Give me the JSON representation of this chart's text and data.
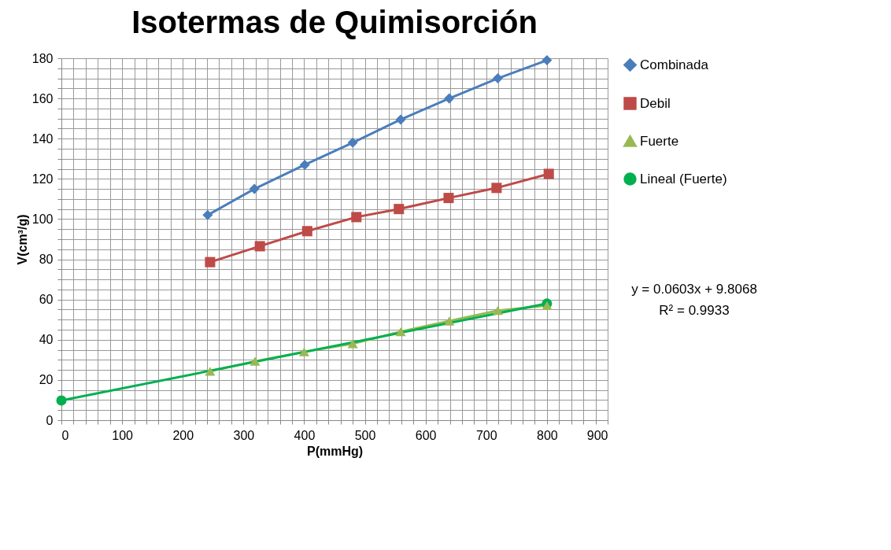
{
  "chart_data": {
    "type": "line",
    "title": "Isotermas de Quimisorción",
    "xlabel": "P(mmHg)",
    "ylabel": "V(cm³/g)",
    "xlim": [
      0,
      900
    ],
    "ylim": [
      0,
      180
    ],
    "xticks": [
      0,
      {
        "value": 20,
        "label": null
      },
      {
        "value": 40,
        "label": null
      },
      {
        "value": 60,
        "label": null
      },
      {
        "value": 80,
        "label": null
      },
      100,
      {
        "value": 120,
        "label": null
      },
      {
        "value": 140,
        "label": null
      },
      {
        "value": 160,
        "label": null
      },
      {
        "value": 180,
        "label": null
      },
      200,
      {
        "value": 220,
        "label": null
      },
      {
        "value": 240,
        "label": null
      },
      {
        "value": 260,
        "label": null
      },
      {
        "value": 280,
        "label": null
      },
      300,
      {
        "value": 320,
        "label": null
      },
      {
        "value": 340,
        "label": null
      },
      {
        "value": 360,
        "label": null
      },
      {
        "value": 380,
        "label": null
      },
      400,
      {
        "value": 420,
        "label": null
      },
      {
        "value": 440,
        "label": null
      },
      {
        "value": 460,
        "label": null
      },
      {
        "value": 480,
        "label": null
      },
      500,
      {
        "value": 520,
        "label": null
      },
      {
        "value": 540,
        "label": null
      },
      {
        "value": 560,
        "label": null
      },
      {
        "value": 580,
        "label": null
      },
      600,
      {
        "value": 620,
        "label": null
      },
      {
        "value": 640,
        "label": null
      },
      {
        "value": 660,
        "label": null
      },
      {
        "value": 680,
        "label": null
      },
      700,
      {
        "value": 720,
        "label": null
      },
      {
        "value": 740,
        "label": null
      },
      {
        "value": 760,
        "label": null
      },
      {
        "value": 780,
        "label": null
      },
      800,
      {
        "value": 820,
        "label": null
      },
      {
        "value": 840,
        "label": null
      },
      {
        "value": 860,
        "label": null
      },
      {
        "value": 880,
        "label": null
      },
      900
    ],
    "yticks": [
      0,
      {
        "value": 5,
        "label": null
      },
      {
        "value": 10,
        "label": null
      },
      {
        "value": 15,
        "label": null
      },
      20,
      {
        "value": 25,
        "label": null
      },
      {
        "value": 30,
        "label": null
      },
      {
        "value": 35,
        "label": null
      },
      40,
      {
        "value": 45,
        "label": null
      },
      {
        "value": 50,
        "label": null
      },
      {
        "value": 55,
        "label": null
      },
      60,
      {
        "value": 65,
        "label": null
      },
      {
        "value": 70,
        "label": null
      },
      {
        "value": 75,
        "label": null
      },
      80,
      {
        "value": 85,
        "label": null
      },
      {
        "value": 90,
        "label": null
      },
      {
        "value": 95,
        "label": null
      },
      100,
      {
        "value": 105,
        "label": null
      },
      {
        "value": 110,
        "label": null
      },
      {
        "value": 115,
        "label": null
      },
      120,
      {
        "value": 125,
        "label": null
      },
      {
        "value": 130,
        "label": null
      },
      {
        "value": 135,
        "label": null
      },
      140,
      {
        "value": 145,
        "label": null
      },
      {
        "value": 150,
        "label": null
      },
      {
        "value": 155,
        "label": null
      },
      160,
      {
        "value": 165,
        "label": null
      },
      {
        "value": 170,
        "label": null
      },
      {
        "value": 175,
        "label": null
      },
      180
    ],
    "grid": true,
    "legend": "right",
    "line_style": "solid",
    "series": [
      {
        "name": "Combinada",
        "color": "#4a7ebb",
        "marker": "diamond",
        "x": [
          241,
          318,
          401,
          480,
          559,
          639,
          719,
          800
        ],
        "values": [
          102,
          115,
          127,
          138,
          149.5,
          160,
          170,
          179
        ]
      },
      {
        "name": "Debil",
        "color": "#be4b48",
        "marker": "square",
        "x": [
          245,
          327,
          405,
          486,
          556,
          638,
          717,
          803
        ],
        "values": [
          78.6,
          86.5,
          94,
          101,
          105,
          110.5,
          115.5,
          122.5
        ]
      },
      {
        "name": "Fuerte",
        "color": "#98b954",
        "marker": "triangle",
        "x": [
          245,
          319,
          400,
          480,
          559,
          639,
          719,
          800
        ],
        "values": [
          24.3,
          29.3,
          34,
          38,
          44,
          49.3,
          54.5,
          57
        ]
      },
      {
        "name": "Lineal (Fuerte)",
        "color": "#00b050",
        "marker": "circle",
        "type": "line",
        "x": [
          0,
          800
        ],
        "values": [
          9.8,
          58
        ]
      }
    ],
    "annotations": [
      "y = 0.0603x + 9.8068",
      "R² = 0.9933"
    ]
  }
}
